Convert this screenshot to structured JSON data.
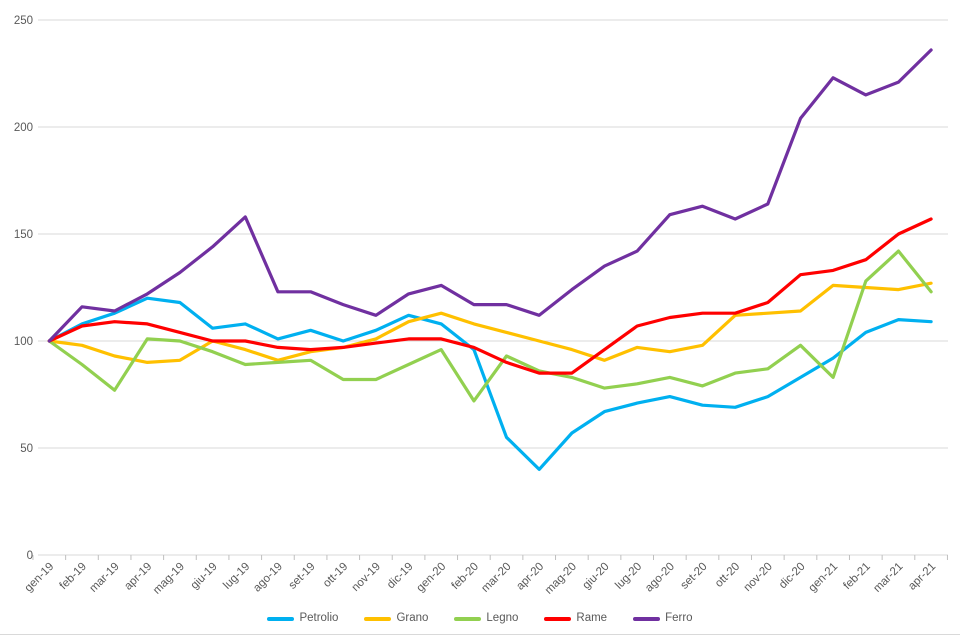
{
  "chart_data": {
    "type": "line",
    "title": "",
    "xlabel": "",
    "ylabel": "",
    "ylim": [
      0,
      250
    ],
    "ytick_interval": 50,
    "ytick_labels": [
      "0",
      "50",
      "100",
      "150",
      "200",
      "250"
    ],
    "grid": true,
    "legend_position": "bottom",
    "categories": [
      "gen-19",
      "feb-19",
      "mar-19",
      "apr-19",
      "mag-19",
      "giu-19",
      "lug-19",
      "ago-19",
      "set-19",
      "ott-19",
      "nov-19",
      "dic-19",
      "gen-20",
      "feb-20",
      "mar-20",
      "apr-20",
      "mag-20",
      "giu-20",
      "lug-20",
      "ago-20",
      "set-20",
      "ott-20",
      "nov-20",
      "dic-20",
      "gen-21",
      "feb-21",
      "mar-21",
      "apr-21"
    ],
    "series": [
      {
        "name": "Petrolio",
        "color": "#00B0F0",
        "values": [
          100,
          108,
          113,
          120,
          118,
          106,
          108,
          101,
          105,
          100,
          105,
          112,
          108,
          96,
          55,
          40,
          57,
          67,
          71,
          74,
          70,
          69,
          74,
          83,
          92,
          104,
          110,
          109
        ]
      },
      {
        "name": "Grano",
        "color": "#FFC000",
        "values": [
          100,
          98,
          93,
          90,
          91,
          100,
          96,
          91,
          95,
          97,
          101,
          109,
          113,
          108,
          104,
          100,
          96,
          91,
          97,
          95,
          98,
          112,
          113,
          114,
          126,
          125,
          124,
          127
        ]
      },
      {
        "name": "Legno",
        "color": "#92D050",
        "values": [
          100,
          89,
          77,
          101,
          100,
          95,
          89,
          90,
          91,
          82,
          82,
          89,
          96,
          72,
          93,
          86,
          83,
          78,
          80,
          83,
          79,
          85,
          87,
          98,
          83,
          128,
          142,
          123
        ]
      },
      {
        "name": "Rame",
        "color": "#FF0000",
        "values": [
          100,
          107,
          109,
          108,
          104,
          100,
          100,
          97,
          96,
          97,
          99,
          101,
          101,
          97,
          90,
          85,
          85,
          96,
          107,
          111,
          113,
          113,
          118,
          131,
          133,
          138,
          150,
          157
        ]
      },
      {
        "name": "Ferro",
        "color": "#7030A0",
        "values": [
          100,
          116,
          114,
          122,
          132,
          144,
          158,
          123,
          123,
          117,
          112,
          122,
          126,
          117,
          117,
          112,
          124,
          135,
          142,
          159,
          163,
          157,
          164,
          204,
          223,
          215,
          221,
          236
        ]
      }
    ],
    "style": {
      "gridline_color": "#d9d9d9",
      "axis_tick_color": "#bfbfbf",
      "label_color": "#595959",
      "background": "#ffffff"
    }
  }
}
